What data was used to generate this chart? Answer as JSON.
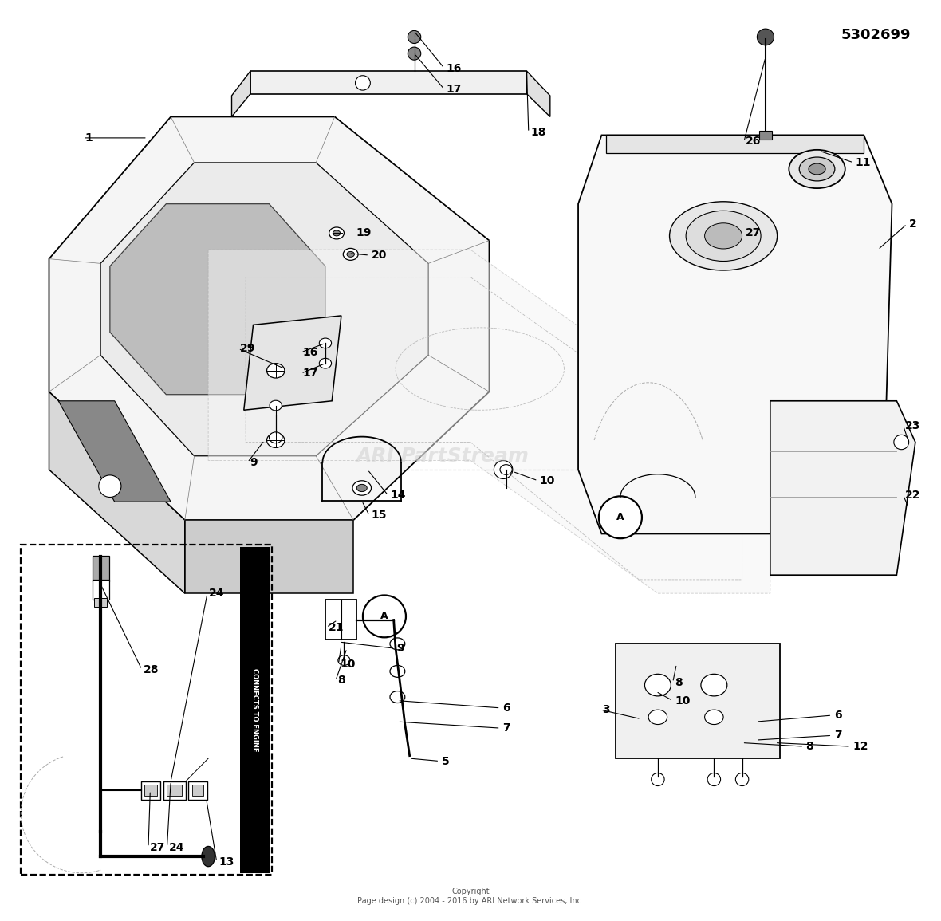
{
  "title": "",
  "part_number": "5302699",
  "copyright_text": "Copyright\nPage design (c) 2004 - 2016 by ARI Network Services, Inc.",
  "background_color": "#ffffff",
  "line_color": "#000000",
  "watermark_text": "ARI PartStream",
  "watermark_color": "#cccccc",
  "fig_width": 11.8,
  "fig_height": 11.55
}
